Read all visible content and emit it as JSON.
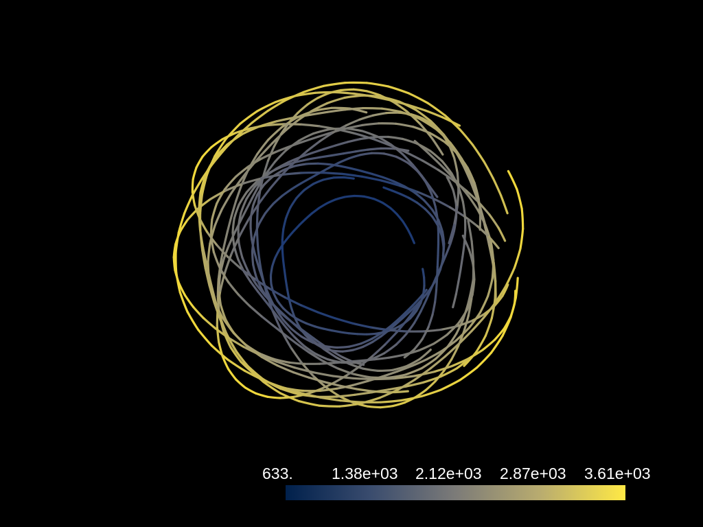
{
  "scalar_bar": {
    "tick_labels": [
      "633.",
      "1.38e+03",
      "2.12e+03",
      "2.87e+03",
      "3.61e+03"
    ],
    "colormap": "cividis",
    "color_stops": [
      "#00204c",
      "#3a4c6e",
      "#7c7b78",
      "#b9ac6f",
      "#ffe945"
    ],
    "range": [
      633,
      3610
    ]
  },
  "scene": {
    "background": "#000000",
    "object": "tube-rendered-curves",
    "color_by": "scalar"
  }
}
